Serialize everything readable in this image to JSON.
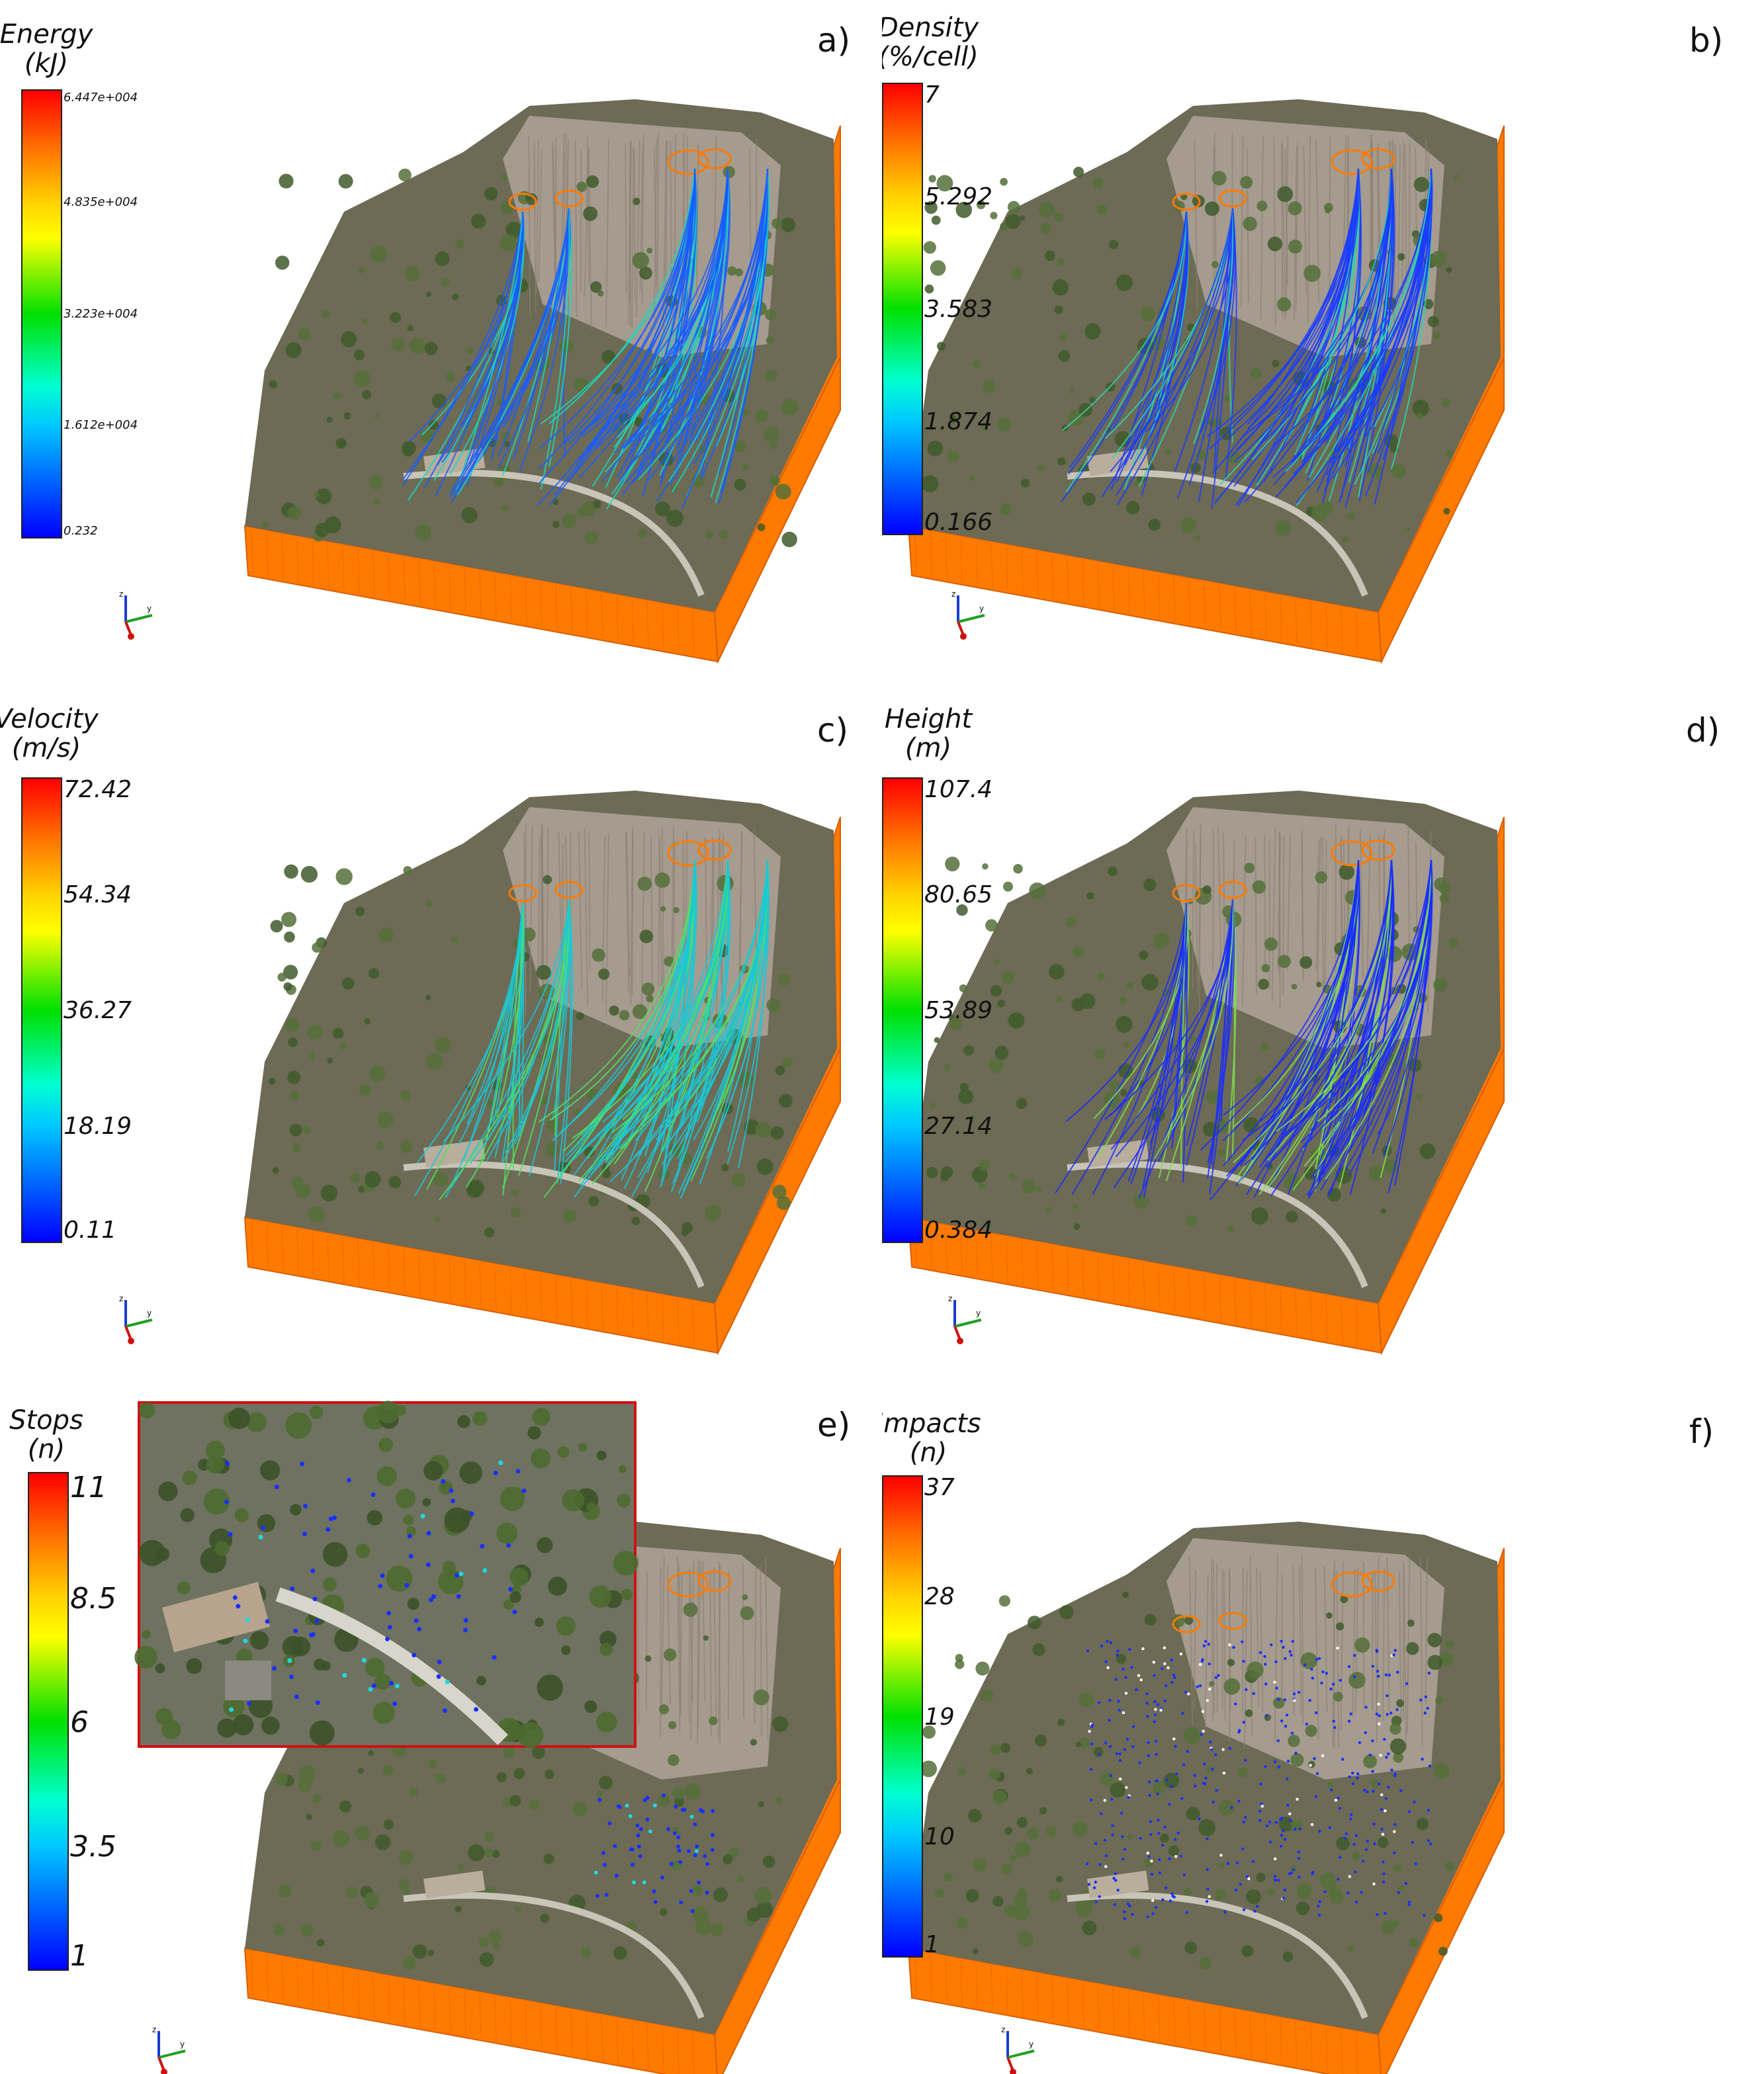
{
  "panels": [
    {
      "letter": "a)",
      "title_line1": "Energy",
      "title_line2": "(kJ)",
      "ticks": [
        "6.447e+004",
        "4.835e+004",
        "3.223e+004",
        "1.612e+004",
        "0.232"
      ],
      "tick_size": "small",
      "trail_color": "#1a5cff",
      "trail_hi": "#18d8c0",
      "style": "trails"
    },
    {
      "letter": "b)",
      "title_line1": "Density",
      "title_line2": "(%/cell)",
      "ticks": [
        "7",
        "5.292",
        "3.583",
        "1.874",
        "0.166"
      ],
      "tick_size": "large",
      "trail_color": "#1a3cff",
      "trail_hi": "#2bd6a8",
      "style": "trails"
    },
    {
      "letter": "c)",
      "title_line1": "Velocity",
      "title_line2": "(m/s)",
      "ticks": [
        "72.42",
        "54.34",
        "36.27",
        "18.19",
        "0.11"
      ],
      "tick_size": "large",
      "trail_color": "#19c8d8",
      "trail_hi": "#52e060",
      "style": "trails"
    },
    {
      "letter": "d)",
      "title_line1": "Height",
      "title_line2": "(m)",
      "ticks": [
        "107.4",
        "80.65",
        "53.89",
        "27.14",
        "0.384"
      ],
      "tick_size": "large",
      "trail_color": "#1a2cff",
      "trail_hi": "#7ee050",
      "style": "trails"
    },
    {
      "letter": "e)",
      "title_line1": "Stops",
      "title_line2": "(n)",
      "ticks": [
        "11",
        "8.5",
        "6",
        "3.5",
        "1"
      ],
      "tick_size": "xl",
      "trail_color": "#1a30ff",
      "trail_hi": "#20d8e0",
      "style": "stops"
    },
    {
      "letter": "f)",
      "title_line1": "Impacts",
      "title_line2": "(n)",
      "ticks": [
        "37",
        "28",
        "19",
        "10",
        "1"
      ],
      "tick_size": "large",
      "trail_color": "#1a30ff",
      "trail_hi": "#ffffff",
      "style": "impacts"
    }
  ],
  "axes_labels": {
    "z": "z",
    "y": "y"
  },
  "colors": {
    "base": "#ff7a00",
    "base_dark": "#d85e00",
    "terrain": "#6d6a55",
    "cliff": "#a59b8f",
    "vegetation": "#3f5a2c",
    "inset_border": "#d01010"
  }
}
